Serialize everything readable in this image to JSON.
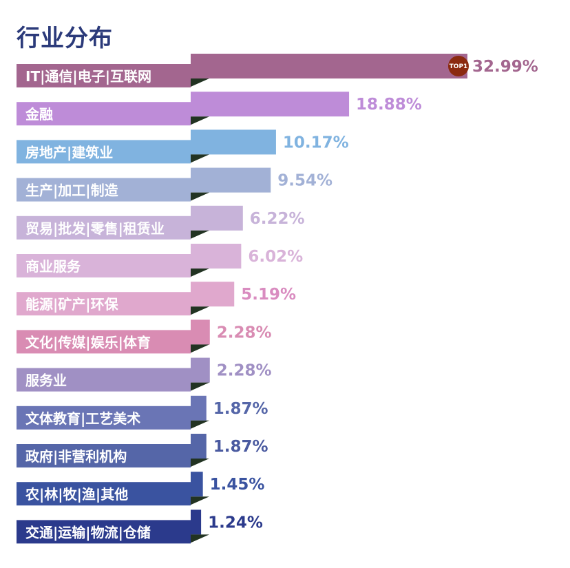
{
  "chart_data": {
    "type": "bar",
    "orientation": "horizontal",
    "title": "行业分布",
    "categories": [
      "IT|通信|电子|互联网",
      "金融",
      "房地产|建筑业",
      "生产|加工|制造",
      "贸易|批发|零售|租赁业",
      "商业服务",
      "能源|矿产|环保",
      "文化|传媒|娱乐|体育",
      "服务业",
      "文体教育|工艺美术",
      "政府|非营利机构",
      "农|林|牧|渔|其他",
      "交通|运输|物流|仓储"
    ],
    "values": [
      32.99,
      18.88,
      10.17,
      9.54,
      6.22,
      6.02,
      5.19,
      2.28,
      2.28,
      1.87,
      1.87,
      1.45,
      1.24
    ],
    "value_labels": [
      "32.99%",
      "18.88%",
      "10.17%",
      "9.54%",
      "6.22%",
      "6.02%",
      "5.19%",
      "2.28%",
      "2.28%",
      "1.87%",
      "1.87%",
      "1.45%",
      "1.24%"
    ],
    "colors": [
      "#a3668f",
      "#be8cd8",
      "#80b3e0",
      "#a2b1d6",
      "#c7b3d9",
      "#d9b3d9",
      "#e0a8cd",
      "#d98cb3",
      "#a090c4",
      "#6a75b5",
      "#5566a8",
      "#3a53a0",
      "#2b3a8c"
    ],
    "text_colors": [
      "#a3668f",
      "#be8cd8",
      "#80b3e0",
      "#a2b1d6",
      "#c7b3d9",
      "#d9b3d9",
      "#d98cc0",
      "#d98cb3",
      "#a090c4",
      "#5566a8",
      "#4a5aa0",
      "#3a53a0",
      "#2b3a8c"
    ],
    "badge": {
      "label": "TOP1",
      "color": "#8b2a10"
    }
  }
}
